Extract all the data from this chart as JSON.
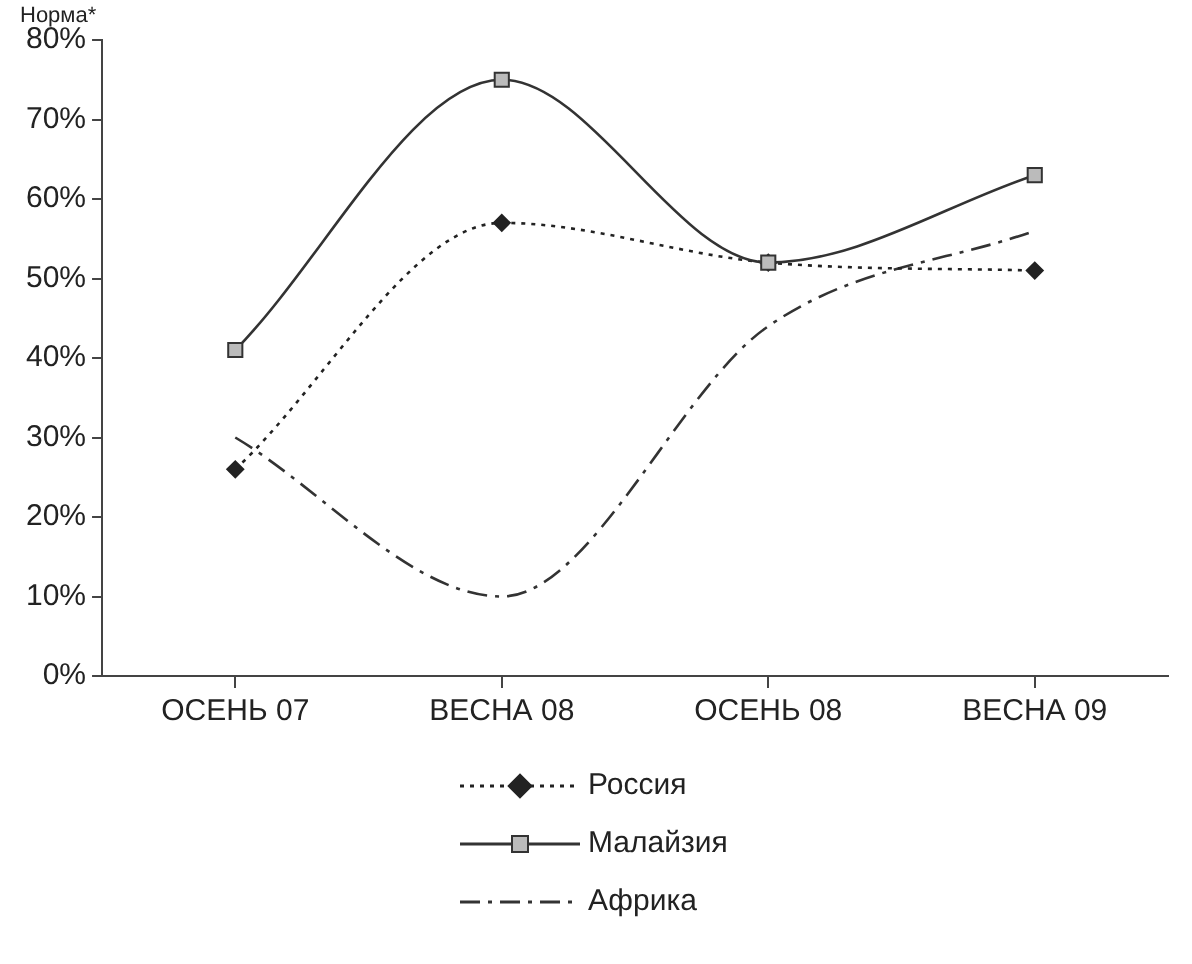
{
  "chart_data": {
    "type": "line",
    "ylabel": "Норма*",
    "categories": [
      "ОСЕНЬ 07",
      "ВЕСНА 08",
      "ОСЕНЬ 08",
      "ВЕСНА 09"
    ],
    "series": [
      {
        "name": "Россия",
        "color": "#222222",
        "values": [
          26,
          57,
          52,
          51
        ],
        "line_style": "dotted",
        "marker": "diamond"
      },
      {
        "name": "Малайзия",
        "color": "#333333",
        "values": [
          41,
          75,
          52,
          63
        ],
        "line_style": "solid",
        "marker": "square"
      },
      {
        "name": "Африка",
        "color": "#333333",
        "values": [
          30,
          10,
          44,
          56
        ],
        "line_style": "dashed",
        "marker": "none"
      }
    ],
    "ylim": [
      0,
      80
    ],
    "yticks": [
      {
        "value": 0,
        "label": "0%"
      },
      {
        "value": 10,
        "label": "10%"
      },
      {
        "value": 20,
        "label": "20%"
      },
      {
        "value": 30,
        "label": "30%"
      },
      {
        "value": 40,
        "label": "40%"
      },
      {
        "value": 50,
        "label": "50%"
      },
      {
        "value": 60,
        "label": "60%"
      },
      {
        "value": 70,
        "label": "70%"
      },
      {
        "value": 80,
        "label": "80%"
      }
    ],
    "grid": false,
    "legend": "bottom"
  }
}
